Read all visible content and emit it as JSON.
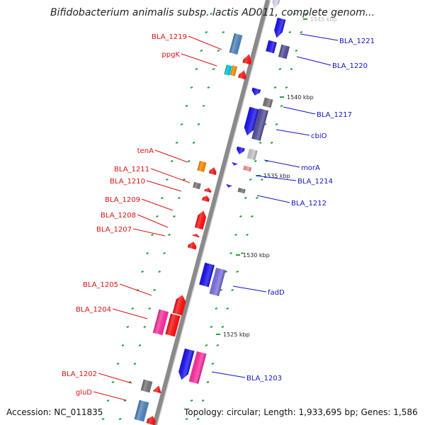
{
  "title": "Bifidobacterium animalis subsp. lactis AD011, complete genom...",
  "footer": {
    "accession": "Accession: NC_011835",
    "summary": "Topology: circular; Length: 1,933,695 bp; Genes: 1,586"
  },
  "colors": {
    "backbone": "#8a8a8a",
    "tick": "#22a33a",
    "label_left": "#dd1111",
    "label_right": "#1111cc",
    "red": "#ff1010",
    "blue": "#1a12f0",
    "pink": "#ff2fa0",
    "steelblue": "#4f86c0",
    "orange": "#ff8c00",
    "cyan": "#00c8d8",
    "gray": "#777777",
    "slate": "#54509a",
    "lavender": "#7b70e0",
    "lightgray": "#c8c8c8",
    "pale": "#d8d8f4",
    "salmon": "#f59090"
  },
  "scale_labels": [
    {
      "text": "1545 kbp",
      "faded": true
    },
    {
      "text": "1540 kbp"
    },
    {
      "text": "1535 kbp"
    },
    {
      "text": "1530 kbp"
    },
    {
      "text": "1525 kbp"
    }
  ],
  "gene_labels": [
    {
      "text": "BLA_1219",
      "side": "left"
    },
    {
      "text": "ppgK",
      "side": "left"
    },
    {
      "text": "tenA",
      "side": "left"
    },
    {
      "text": "BLA_1211",
      "side": "left"
    },
    {
      "text": "BLA_1210",
      "side": "left"
    },
    {
      "text": "BLA_1209",
      "side": "left"
    },
    {
      "text": "BLA_1208",
      "side": "left"
    },
    {
      "text": "BLA_1207",
      "side": "left"
    },
    {
      "text": "BLA_1205",
      "side": "left"
    },
    {
      "text": "BLA_1204",
      "side": "left"
    },
    {
      "text": "BLA_1202",
      "side": "left"
    },
    {
      "text": "gluD",
      "side": "left"
    },
    {
      "text": "BLA_1221",
      "side": "right"
    },
    {
      "text": "BLA_1220",
      "side": "right"
    },
    {
      "text": "BLA_1217",
      "side": "right"
    },
    {
      "text": "cbiO",
      "side": "right"
    },
    {
      "text": "morA",
      "side": "right"
    },
    {
      "text": "BLA_1214",
      "side": "right"
    },
    {
      "text": "BLA_1212",
      "side": "right"
    },
    {
      "text": "fadD",
      "side": "right"
    },
    {
      "text": "BLA_1203",
      "side": "right"
    }
  ],
  "genes": [
    {
      "color": "pale",
      "strand": "-"
    },
    {
      "color": "blue",
      "strand": "-"
    },
    {
      "color": "blue",
      "strand": "-"
    },
    {
      "color": "slate",
      "strand": "+"
    },
    {
      "color": "steelblue",
      "strand": "+"
    },
    {
      "color": "red",
      "strand": "+"
    },
    {
      "color": "cyan",
      "strand": "+"
    },
    {
      "color": "orange",
      "strand": "+"
    },
    {
      "color": "red",
      "strand": "+"
    },
    {
      "color": "blue",
      "strand": "-"
    },
    {
      "color": "blue",
      "strand": "-"
    },
    {
      "color": "gray",
      "strand": "-"
    },
    {
      "color": "slate",
      "strand": "-"
    },
    {
      "color": "blue",
      "strand": "-"
    },
    {
      "color": "lightgray",
      "strand": "-"
    },
    {
      "color": "blue",
      "strand": "-"
    },
    {
      "color": "salmon",
      "strand": "-"
    },
    {
      "color": "blue",
      "strand": "-"
    },
    {
      "color": "gray",
      "strand": "-"
    },
    {
      "color": "orange",
      "strand": "+"
    },
    {
      "color": "red",
      "strand": "+"
    },
    {
      "color": "gray",
      "strand": "+"
    },
    {
      "color": "red",
      "strand": "+"
    },
    {
      "color": "red",
      "strand": "+"
    },
    {
      "color": "red",
      "strand": "+"
    },
    {
      "color": "red",
      "strand": "+"
    },
    {
      "color": "red",
      "strand": "+"
    },
    {
      "color": "blue",
      "strand": "-"
    },
    {
      "color": "lavender",
      "strand": "-"
    },
    {
      "color": "red",
      "strand": "+"
    },
    {
      "color": "pink",
      "strand": "+"
    },
    {
      "color": "red",
      "strand": "+"
    },
    {
      "color": "blue",
      "strand": "-"
    },
    {
      "color": "pink",
      "strand": "-"
    },
    {
      "color": "gray",
      "strand": "+"
    },
    {
      "color": "red",
      "strand": "+"
    },
    {
      "color": "steelblue",
      "strand": "+"
    },
    {
      "color": "red",
      "strand": "+"
    }
  ]
}
